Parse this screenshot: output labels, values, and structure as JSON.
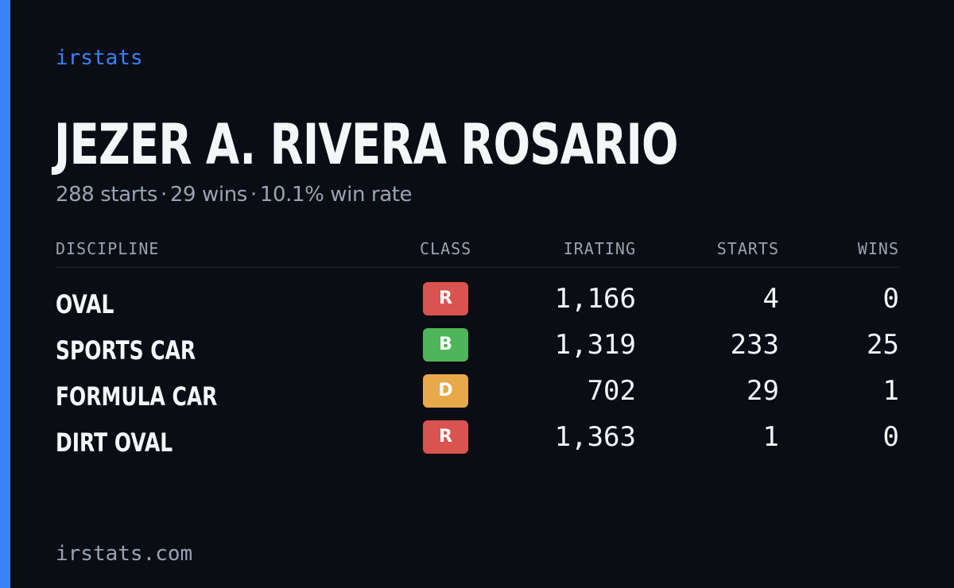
{
  "brand": "irstats",
  "player": {
    "name": "JEZER A. RIVERA ROSARIO"
  },
  "summary": {
    "starts": "288 starts",
    "wins": "29 wins",
    "win_rate": "10.1% win rate",
    "separator": "·"
  },
  "table": {
    "headers": {
      "discipline": "DISCIPLINE",
      "class": "CLASS",
      "irating": "IRATING",
      "starts": "STARTS",
      "wins": "WINS"
    },
    "rows": [
      {
        "discipline": "OVAL",
        "class": "R",
        "class_color": "#d9534f",
        "irating": "1,166",
        "starts": "4",
        "wins": "0"
      },
      {
        "discipline": "SPORTS CAR",
        "class": "B",
        "class_color": "#4fb55a",
        "irating": "1,319",
        "starts": "233",
        "wins": "25"
      },
      {
        "discipline": "FORMULA CAR",
        "class": "D",
        "class_color": "#e8a94a",
        "irating": "702",
        "starts": "29",
        "wins": "1"
      },
      {
        "discipline": "DIRT OVAL",
        "class": "R",
        "class_color": "#d9534f",
        "irating": "1,363",
        "starts": "1",
        "wins": "0"
      }
    ]
  },
  "footer": {
    "url": "irstats.com"
  },
  "colors": {
    "background": "#0a0d14",
    "accent": "#3b82f6",
    "text": "#f5f6f8",
    "muted": "#9aa3b2"
  }
}
